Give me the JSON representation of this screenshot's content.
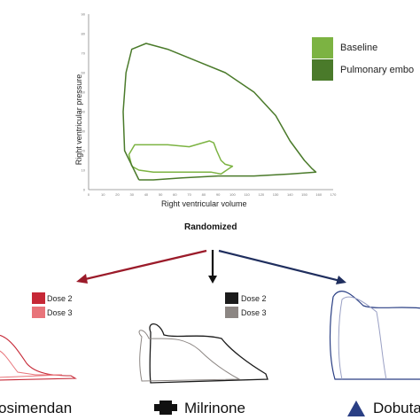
{
  "main_chart": {
    "ylabel": "Right ventricular pressure",
    "xlabel": "Right ventricular volume",
    "x_ticks": [
      "0",
      "10",
      "20",
      "30",
      "40",
      "50",
      "60",
      "70",
      "80",
      "90",
      "100",
      "110",
      "120",
      "130",
      "140",
      "150",
      "160",
      "170"
    ],
    "y_ticks": [
      "0",
      "10",
      "20",
      "30",
      "40",
      "50",
      "60",
      "70",
      "80",
      "90"
    ],
    "legend": [
      {
        "label": "Baseline",
        "color": "#7cb342"
      },
      {
        "label": "Pulmonary embo",
        "color": "#4a7a2a"
      }
    ]
  },
  "chart_data": {
    "type": "line",
    "xlabel": "Right ventricular volume",
    "ylabel": "Right ventricular pressure",
    "xlim": [
      0,
      170
    ],
    "ylim": [
      0,
      90
    ],
    "series": [
      {
        "name": "Baseline",
        "color": "#7cb342",
        "x": [
          30,
          28,
          32,
          40,
          55,
          70,
          84,
          87,
          89,
          92,
          95,
          100,
          98,
          92,
          85,
          75,
          60,
          45,
          35,
          30
        ],
        "y": [
          12,
          18,
          23,
          23,
          23,
          22,
          25,
          24,
          20,
          15,
          13,
          12,
          11,
          8,
          9,
          9,
          9,
          9,
          10,
          12
        ]
      },
      {
        "name": "Pulmonary embo",
        "color": "#4a7a2a",
        "x": [
          35,
          25,
          24,
          26,
          30,
          40,
          55,
          75,
          95,
          115,
          130,
          140,
          150,
          155,
          158,
          140,
          115,
          90,
          65,
          45,
          35
        ],
        "y": [
          5,
          20,
          40,
          60,
          72,
          75,
          72,
          66,
          60,
          50,
          38,
          25,
          15,
          11,
          9,
          8,
          7,
          7,
          6,
          5,
          5
        ]
      }
    ]
  },
  "randomized_label": "Randomized",
  "arms": [
    {
      "drug": "osimendan",
      "color": "#a01c2c",
      "doses": [
        {
          "label": "Dose 2",
          "color": "#c62836"
        },
        {
          "label": "Dose 3",
          "color": "#e8747a"
        }
      ]
    },
    {
      "drug": "Milrinone",
      "color": "#111111",
      "doses": [
        {
          "label": "Dose 2",
          "color": "#1b1b1b"
        },
        {
          "label": "Dose 3",
          "color": "#8c8683"
        }
      ]
    },
    {
      "drug": "Dobuta",
      "color": "#2a3f84",
      "doses": []
    }
  ]
}
